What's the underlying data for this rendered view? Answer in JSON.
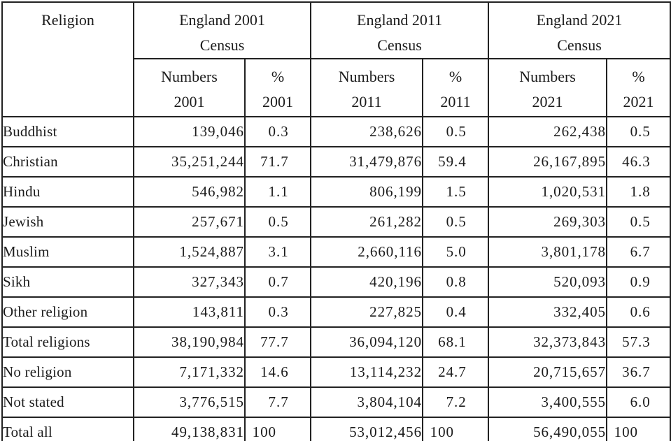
{
  "table": {
    "header": {
      "religion_label": "Religion",
      "groups": [
        {
          "title": "England 2001\nCensus",
          "numbers_label": "Numbers\n2001",
          "percent_label": "%\n2001"
        },
        {
          "title": "England 2011\nCensus",
          "numbers_label": "Numbers\n2011",
          "percent_label": "%\n2011"
        },
        {
          "title": "England 2021\nCensus",
          "numbers_label": "Numbers\n2021",
          "percent_label": "%\n2021"
        }
      ]
    },
    "rows": [
      {
        "religion": "Buddhist",
        "numbers_2001": "139,046",
        "pct_2001": "0.3",
        "numbers_2011": "238,626",
        "pct_2011": "0.5",
        "numbers_2021": "262,438",
        "pct_2021": "0.5"
      },
      {
        "religion": "Christian",
        "numbers_2001": "35,251,244",
        "pct_2001": "71.7",
        "numbers_2011": "31,479,876",
        "pct_2011": "59.4",
        "numbers_2021": "26,167,895",
        "pct_2021": "46.3"
      },
      {
        "religion": "Hindu",
        "numbers_2001": "546,982",
        "pct_2001": "1.1",
        "numbers_2011": "806,199",
        "pct_2011": "1.5",
        "numbers_2021": "1,020,531",
        "pct_2021": "1.8"
      },
      {
        "religion": "Jewish",
        "numbers_2001": "257,671",
        "pct_2001": "0.5",
        "numbers_2011": "261,282",
        "pct_2011": "0.5",
        "numbers_2021": "269,303",
        "pct_2021": "0.5"
      },
      {
        "religion": "Muslim",
        "numbers_2001": "1,524,887",
        "pct_2001": "3.1",
        "numbers_2011": "2,660,116",
        "pct_2011": "5.0",
        "numbers_2021": "3,801,178",
        "pct_2021": "6.7"
      },
      {
        "religion": "Sikh",
        "numbers_2001": "327,343",
        "pct_2001": "0.7",
        "numbers_2011": "420,196",
        "pct_2011": "0.8",
        "numbers_2021": "520,093",
        "pct_2021": "0.9"
      },
      {
        "religion": "Other religion",
        "numbers_2001": "143,811",
        "pct_2001": "0.3",
        "numbers_2011": "227,825",
        "pct_2011": "0.4",
        "numbers_2021": "332,405",
        "pct_2021": "0.6"
      },
      {
        "religion": "Total religions",
        "numbers_2001": "38,190,984",
        "pct_2001": "77.7",
        "numbers_2011": "36,094,120",
        "pct_2011": "68.1",
        "numbers_2021": "32,373,843",
        "pct_2021": "57.3"
      },
      {
        "religion": "No religion",
        "numbers_2001": "7,171,332",
        "pct_2001": "14.6",
        "numbers_2011": "13,114,232",
        "pct_2011": "24.7",
        "numbers_2021": "20,715,657",
        "pct_2021": "36.7"
      },
      {
        "religion": "Not stated",
        "numbers_2001": "3,776,515",
        "pct_2001": "7.7",
        "numbers_2011": "3,804,104",
        "pct_2011": "7.2",
        "numbers_2021": "3,400,555",
        "pct_2021": "6.0"
      },
      {
        "religion": "Total all",
        "numbers_2001": "49,138,831",
        "pct_2001": "100",
        "numbers_2011": "53,012,456",
        "pct_2011": "100",
        "numbers_2021": "56,490,055",
        "pct_2021": "100"
      }
    ]
  },
  "chart_data": {
    "type": "table",
    "columns": [
      "Religion",
      "Numbers 2001",
      "% 2001",
      "Numbers 2011",
      "% 2011",
      "Numbers 2021",
      "% 2021"
    ],
    "rows": [
      [
        "Buddhist",
        139046,
        0.3,
        238626,
        0.5,
        262438,
        0.5
      ],
      [
        "Christian",
        35251244,
        71.7,
        31479876,
        59.4,
        26167895,
        46.3
      ],
      [
        "Hindu",
        546982,
        1.1,
        806199,
        1.5,
        1020531,
        1.8
      ],
      [
        "Jewish",
        257671,
        0.5,
        261282,
        0.5,
        269303,
        0.5
      ],
      [
        "Muslim",
        1524887,
        3.1,
        2660116,
        5.0,
        3801178,
        6.7
      ],
      [
        "Sikh",
        327343,
        0.7,
        420196,
        0.8,
        520093,
        0.9
      ],
      [
        "Other religion",
        143811,
        0.3,
        227825,
        0.4,
        332405,
        0.6
      ],
      [
        "Total religions",
        38190984,
        77.7,
        36094120,
        68.1,
        32373843,
        57.3
      ],
      [
        "No religion",
        7171332,
        14.6,
        13114232,
        24.7,
        20715657,
        36.7
      ],
      [
        "Not stated",
        3776515,
        7.7,
        3804104,
        7.2,
        3400555,
        6.0
      ],
      [
        "Total all",
        49138831,
        100,
        53012456,
        100,
        56490055,
        100
      ]
    ]
  },
  "colors": {
    "text": "#1b1b1b",
    "border": "#222222",
    "background": "#ffffff"
  }
}
